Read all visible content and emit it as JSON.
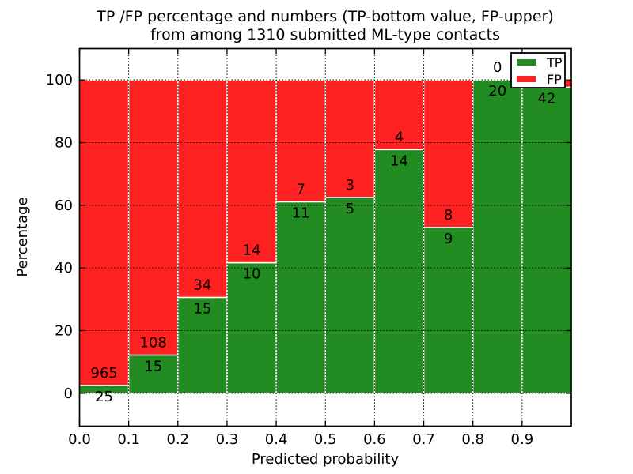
{
  "figure": {
    "background": "#ffffff"
  },
  "chart_data": {
    "type": "bar",
    "stacked": true,
    "title_lines": [
      "TP /FP percentage and numbers (TP-bottom value, FP-upper)",
      "from among 1310 submitted ML-type contacts"
    ],
    "xlabel": "Predicted probability",
    "ylabel": "Percentage",
    "total_submitted_contacts": 1310,
    "x_tick_values": [
      0.0,
      0.1,
      0.2,
      0.3,
      0.4,
      0.5,
      0.6,
      0.7,
      0.8,
      0.9
    ],
    "x_tick_labels": [
      "0.0",
      "0.1",
      "0.2",
      "0.3",
      "0.4",
      "0.5",
      "0.6",
      "0.7",
      "0.8",
      "0.9"
    ],
    "y_tick_values": [
      0,
      20,
      40,
      60,
      80,
      100
    ],
    "y_tick_labels": [
      "0",
      "20",
      "40",
      "60",
      "80",
      "100"
    ],
    "xlim": [
      0.0,
      1.0
    ],
    "ylim": [
      -10.5,
      110.0
    ],
    "bin_width": 0.1,
    "bins": [
      {
        "range": "0.0-0.1",
        "tp": 25,
        "fp": 965,
        "tp_percent": 2.5,
        "tp_label": "25",
        "fp_label": "965"
      },
      {
        "range": "0.1-0.2",
        "tp": 15,
        "fp": 108,
        "tp_percent": 12.2,
        "tp_label": "15",
        "fp_label": "108"
      },
      {
        "range": "0.2-0.3",
        "tp": 15,
        "fp": 34,
        "tp_percent": 30.6,
        "tp_label": "15",
        "fp_label": "34"
      },
      {
        "range": "0.3-0.4",
        "tp": 10,
        "fp": 14,
        "tp_percent": 41.7,
        "tp_label": "10",
        "fp_label": "14"
      },
      {
        "range": "0.4-0.5",
        "tp": 11,
        "fp": 7,
        "tp_percent": 61.1,
        "tp_label": "11",
        "fp_label": "7"
      },
      {
        "range": "0.5-0.6",
        "tp": 5,
        "fp": 3,
        "tp_percent": 62.5,
        "tp_label": "5",
        "fp_label": "3"
      },
      {
        "range": "0.6-0.7",
        "tp": 14,
        "fp": 4,
        "tp_percent": 77.8,
        "tp_label": "14",
        "fp_label": "4"
      },
      {
        "range": "0.7-0.8",
        "tp": 9,
        "fp": 8,
        "tp_percent": 52.9,
        "tp_label": "9",
        "fp_label": "8"
      },
      {
        "range": "0.8-0.9",
        "tp": 20,
        "fp": 0,
        "tp_percent": 100.0,
        "tp_label": "20",
        "fp_label": "0"
      },
      {
        "range": "0.9-1.0",
        "tp": 42,
        "fp": 1,
        "tp_percent": 97.7,
        "tp_label": "42",
        "fp_label": ""
      }
    ],
    "colors": {
      "tp": "#228B22",
      "fp": "#FF2121"
    },
    "legend": {
      "position": "upper right",
      "entries": [
        {
          "label": "TP",
          "color_key": "tp"
        },
        {
          "label": "FP",
          "color_key": "fp"
        }
      ]
    },
    "grid": {
      "linestyle": "dotted",
      "color": "#000000"
    }
  }
}
